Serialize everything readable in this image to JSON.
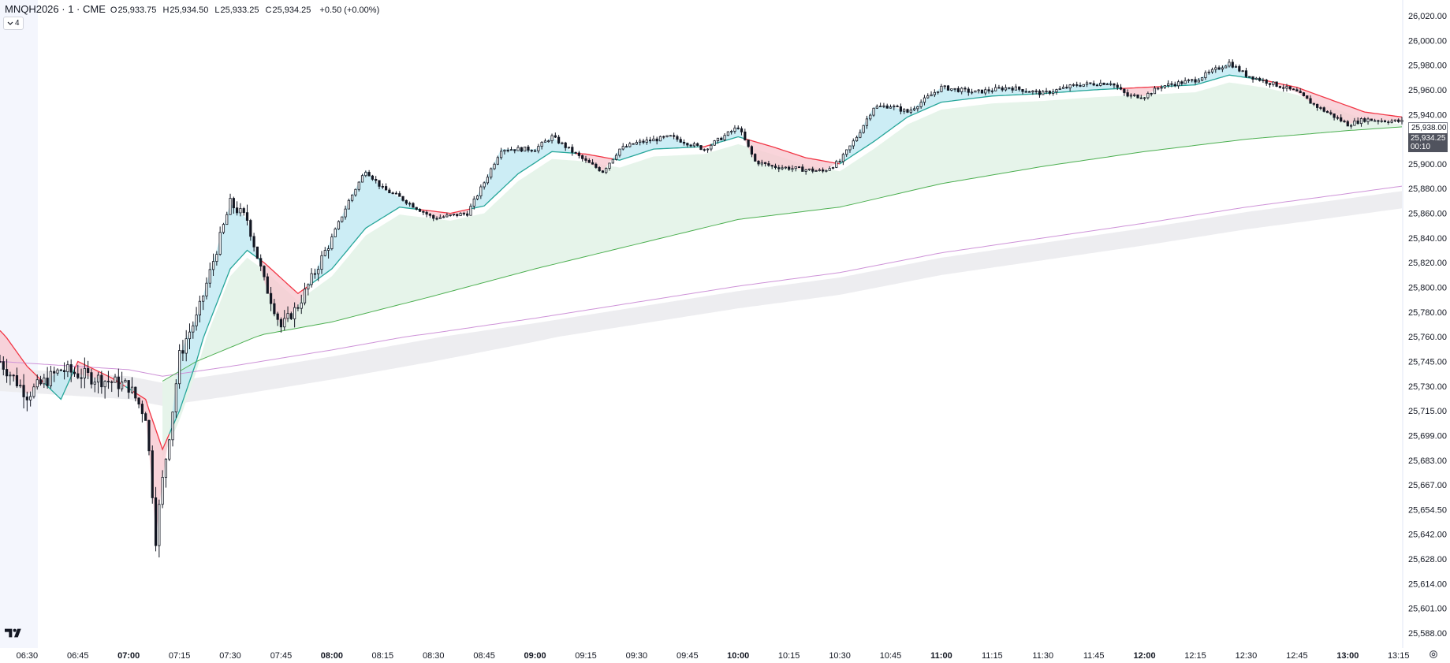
{
  "header": {
    "symbol": "MNQH2026 · 1 · CME",
    "open_label": "O",
    "open": "25,933.75",
    "high_label": "H",
    "high": "25,934.50",
    "low_label": "L",
    "low": "25,933.25",
    "close_label": "C",
    "close": "25,934.25",
    "change": "+0.50 (+0.00%)",
    "collapse_button": "4"
  },
  "price_badges": {
    "previous": "25,938.00",
    "last": "25,934.25",
    "countdown": "00:10"
  },
  "colors": {
    "fast_up": "#26a69a",
    "fast_down": "#f23645",
    "band_up": "#bfe9f2",
    "band_down": "#f8c9d1",
    "slow": "#4caf50",
    "slow_band": "#e6f4ea",
    "longest": "#ce93d8",
    "longest_band": "#ededf0",
    "candle": "#131722"
  },
  "chart_data": {
    "type": "candlestick",
    "title": "",
    "xlabel": "",
    "ylabel": "",
    "x_ticks": [
      "06:30",
      "06:45",
      "07:00",
      "07:15",
      "07:30",
      "07:45",
      "08:00",
      "08:15",
      "08:30",
      "08:45",
      "09:00",
      "09:15",
      "09:30",
      "09:45",
      "10:00",
      "10:15",
      "10:30",
      "10:45",
      "11:00",
      "11:15",
      "11:30",
      "11:45",
      "12:00",
      "12:15",
      "12:30",
      "12:45",
      "13:00",
      "13:15"
    ],
    "x_ticks_bold": [
      "07:00",
      "08:00",
      "09:00",
      "10:00",
      "11:00",
      "12:00",
      "13:00"
    ],
    "y_ticks": [
      "26,020.00",
      "26,000.00",
      "25,980.00",
      "25,960.00",
      "25,940.00",
      "25,920.00",
      "25,900.00",
      "25,880.00",
      "25,860.00",
      "25,840.00",
      "25,820.00",
      "25,800.00",
      "25,780.00",
      "25,760.00",
      "25,745.00",
      "25,730.00",
      "25,715.00",
      "25,699.00",
      "25,683.00",
      "25,667.00",
      "25,654.50",
      "25,642.00",
      "25,628.00",
      "25,614.00",
      "25,601.00",
      "25,588.00"
    ],
    "x_range": [
      "06:22",
      "13:16"
    ],
    "y_range": [
      25580,
      26025
    ],
    "grid": false,
    "price_key": [
      [
        "06:22",
        25745
      ],
      [
        "06:30",
        25725
      ],
      [
        "06:40",
        25740
      ],
      [
        "06:50",
        25735
      ],
      [
        "07:00",
        25730
      ],
      [
        "07:05",
        25712
      ],
      [
        "07:08",
        25640
      ],
      [
        "07:12",
        25700
      ],
      [
        "07:15",
        25748
      ],
      [
        "07:20",
        25775
      ],
      [
        "07:30",
        25868
      ],
      [
        "07:35",
        25855
      ],
      [
        "07:40",
        25805
      ],
      [
        "07:45",
        25768
      ],
      [
        "07:50",
        25785
      ],
      [
        "08:00",
        25840
      ],
      [
        "08:05",
        25870
      ],
      [
        "08:10",
        25895
      ],
      [
        "08:15",
        25880
      ],
      [
        "08:20",
        25873
      ],
      [
        "08:30",
        25856
      ],
      [
        "08:40",
        25860
      ],
      [
        "08:45",
        25885
      ],
      [
        "08:50",
        25912
      ],
      [
        "09:00",
        25912
      ],
      [
        "09:05",
        25922
      ],
      [
        "09:15",
        25902
      ],
      [
        "09:20",
        25894
      ],
      [
        "09:25",
        25912
      ],
      [
        "09:30",
        25917
      ],
      [
        "09:40",
        25922
      ],
      [
        "09:50",
        25912
      ],
      [
        "10:00",
        25930
      ],
      [
        "10:05",
        25902
      ],
      [
        "10:10",
        25898
      ],
      [
        "10:25",
        25894
      ],
      [
        "10:30",
        25902
      ],
      [
        "10:35",
        25922
      ],
      [
        "10:40",
        25946
      ],
      [
        "10:45",
        25947
      ],
      [
        "10:50",
        25942
      ],
      [
        "11:00",
        25962
      ],
      [
        "11:10",
        25958
      ],
      [
        "11:20",
        25962
      ],
      [
        "11:30",
        25957
      ],
      [
        "11:40",
        25964
      ],
      [
        "11:50",
        25966
      ],
      [
        "11:55",
        25955
      ],
      [
        "12:00",
        25955
      ],
      [
        "12:05",
        25963
      ],
      [
        "12:15",
        25968
      ],
      [
        "12:25",
        25982
      ],
      [
        "12:30",
        25972
      ],
      [
        "12:40",
        25963
      ],
      [
        "12:45",
        25958
      ],
      [
        "12:50",
        25948
      ],
      [
        "12:55",
        25940
      ],
      [
        "13:00",
        25932
      ],
      [
        "13:05",
        25936
      ],
      [
        "13:16",
        25934.25
      ]
    ],
    "series": [
      {
        "name": "",
        "role": "fast_ma",
        "values": [
          [
            "06:22",
            25765
          ],
          [
            "06:30",
            25742
          ],
          [
            "06:40",
            25722
          ],
          [
            "06:45",
            25745
          ],
          [
            "06:55",
            25735
          ],
          [
            "07:05",
            25722
          ],
          [
            "07:10",
            25690
          ],
          [
            "07:15",
            25715
          ],
          [
            "07:20",
            25745
          ],
          [
            "07:30",
            25815
          ],
          [
            "07:35",
            25830
          ],
          [
            "07:40",
            25820
          ],
          [
            "07:50",
            25795
          ],
          [
            "08:00",
            25815
          ],
          [
            "08:10",
            25848
          ],
          [
            "08:20",
            25865
          ],
          [
            "08:35",
            25860
          ],
          [
            "08:45",
            25866
          ],
          [
            "08:55",
            25892
          ],
          [
            "09:05",
            25910
          ],
          [
            "09:15",
            25908
          ],
          [
            "09:25",
            25903
          ],
          [
            "09:35",
            25912
          ],
          [
            "09:50",
            25914
          ],
          [
            "10:00",
            25922
          ],
          [
            "10:10",
            25914
          ],
          [
            "10:20",
            25905
          ],
          [
            "10:30",
            25900
          ],
          [
            "10:40",
            25918
          ],
          [
            "10:50",
            25938
          ],
          [
            "11:00",
            25950
          ],
          [
            "11:15",
            25955
          ],
          [
            "11:30",
            25957
          ],
          [
            "11:45",
            25960
          ],
          [
            "12:00",
            25962
          ],
          [
            "12:15",
            25964
          ],
          [
            "12:25",
            25972
          ],
          [
            "12:35",
            25968
          ],
          [
            "12:45",
            25962
          ],
          [
            "12:55",
            25952
          ],
          [
            "13:05",
            25942
          ],
          [
            "13:16",
            25938
          ]
        ]
      },
      {
        "name": "",
        "role": "slow_ma",
        "values": [
          [
            "07:10",
            25733
          ],
          [
            "07:20",
            25745
          ],
          [
            "07:40",
            25762
          ],
          [
            "08:00",
            25772
          ],
          [
            "08:30",
            25793
          ],
          [
            "09:00",
            25815
          ],
          [
            "09:30",
            25835
          ],
          [
            "10:00",
            25855
          ],
          [
            "10:30",
            25865
          ],
          [
            "11:00",
            25884
          ],
          [
            "11:30",
            25898
          ],
          [
            "12:00",
            25910
          ],
          [
            "12:30",
            25920
          ],
          [
            "13:00",
            25927
          ],
          [
            "13:16",
            25930
          ]
        ]
      },
      {
        "name": "",
        "role": "long_ma",
        "values": [
          [
            "06:22",
            25745
          ],
          [
            "07:00",
            25740
          ],
          [
            "07:10",
            25736
          ],
          [
            "07:30",
            25742
          ],
          [
            "08:00",
            25752
          ],
          [
            "08:30",
            25763
          ],
          [
            "09:00",
            25775
          ],
          [
            "09:30",
            25788
          ],
          [
            "10:00",
            25801
          ],
          [
            "10:30",
            25812
          ],
          [
            "11:00",
            25828
          ],
          [
            "11:30",
            25840
          ],
          [
            "12:00",
            25852
          ],
          [
            "12:30",
            25865
          ],
          [
            "13:00",
            25876
          ],
          [
            "13:16",
            25882
          ]
        ]
      }
    ]
  }
}
